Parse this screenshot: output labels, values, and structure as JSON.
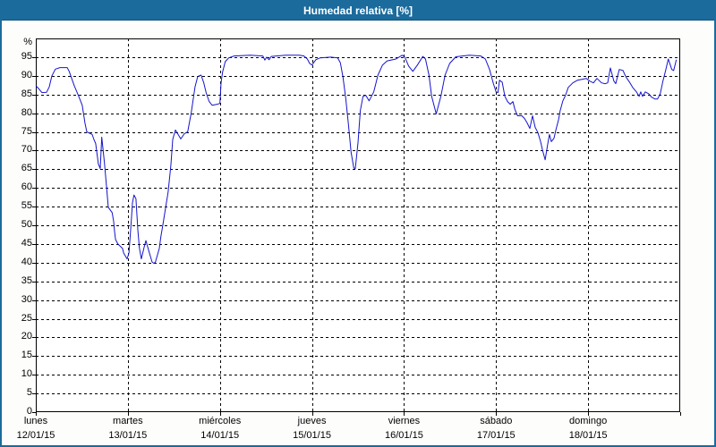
{
  "window": {
    "title": "Humedad relativa [%]"
  },
  "colors": {
    "titlebar": "#1B6B9D",
    "window_border": "#1B6B9D",
    "background": "#FDFEFC",
    "plot_background": "#FFFFFF",
    "grid": "#000000",
    "axis": "#000000",
    "line": "#1414CC",
    "text": "#000000",
    "title_text": "#FFFFFF"
  },
  "chart_data": {
    "type": "line",
    "title": "Humedad relativa [%]",
    "xlabel": "",
    "ylabel": "%",
    "ylim": [
      0,
      100
    ],
    "x_hours_range": [
      0,
      168
    ],
    "grid": "dashed",
    "legend": "none",
    "y_ticks": [
      0,
      5,
      10,
      15,
      20,
      25,
      30,
      35,
      40,
      45,
      50,
      55,
      60,
      65,
      70,
      75,
      80,
      85,
      90,
      95
    ],
    "days": [
      {
        "name": "lunes",
        "date": "12/01/15"
      },
      {
        "name": "martes",
        "date": "13/01/15"
      },
      {
        "name": "miércoles",
        "date": "14/01/15"
      },
      {
        "name": "jueves",
        "date": "15/01/15"
      },
      {
        "name": "viernes",
        "date": "16/01/15"
      },
      {
        "name": "sábado",
        "date": "17/01/15"
      },
      {
        "name": "domingo",
        "date": "18/01/15"
      }
    ],
    "series": [
      {
        "name": "Humedad relativa",
        "unit": "%",
        "points_hours_value": [
          [
            0,
            87.4
          ],
          [
            0.8,
            86.5
          ],
          [
            1.6,
            85.5
          ],
          [
            2.8,
            85.6
          ],
          [
            3.5,
            87
          ],
          [
            4.2,
            90
          ],
          [
            5.1,
            91.8
          ],
          [
            6.3,
            92.2
          ],
          [
            8.2,
            92.2
          ],
          [
            8.7,
            91.2
          ],
          [
            10,
            87.4
          ],
          [
            11.2,
            84.5
          ],
          [
            12.1,
            82.1
          ],
          [
            12.8,
            77.4
          ],
          [
            13.3,
            75
          ],
          [
            14.7,
            74.3
          ],
          [
            15.1,
            73.1
          ],
          [
            15.6,
            71.9
          ],
          [
            16.3,
            66.4
          ],
          [
            16.8,
            65.2
          ],
          [
            17.2,
            73.6
          ],
          [
            17.9,
            66.7
          ],
          [
            18.4,
            60.7
          ],
          [
            18.9,
            54.8
          ],
          [
            19.9,
            53.4
          ],
          [
            20.3,
            51
          ],
          [
            20.5,
            48.6
          ],
          [
            20.8,
            46.2
          ],
          [
            21.4,
            45
          ],
          [
            22.6,
            43.8
          ],
          [
            22.9,
            42.6
          ],
          [
            23.4,
            41.7
          ],
          [
            23.8,
            41
          ],
          [
            24.3,
            42.6
          ],
          [
            24.9,
            51.2
          ],
          [
            25.2,
            56
          ],
          [
            25.6,
            58.1
          ],
          [
            26.1,
            57.1
          ],
          [
            26.6,
            48.8
          ],
          [
            27,
            44
          ],
          [
            27.5,
            41
          ],
          [
            28.2,
            44
          ],
          [
            28.7,
            45.9
          ],
          [
            29.6,
            42.6
          ],
          [
            30.3,
            40.2
          ],
          [
            30.8,
            39.8
          ],
          [
            31.2,
            40.2
          ],
          [
            32.2,
            43.8
          ],
          [
            32.6,
            46.9
          ],
          [
            33.1,
            50
          ],
          [
            33.8,
            54.5
          ],
          [
            34.5,
            59
          ],
          [
            35.2,
            66
          ],
          [
            35.7,
            73
          ],
          [
            36.4,
            75.5
          ],
          [
            37.1,
            74.3
          ],
          [
            37.8,
            73.1
          ],
          [
            38.7,
            74.5
          ],
          [
            39.6,
            75
          ],
          [
            40.5,
            80
          ],
          [
            41.5,
            87
          ],
          [
            42.2,
            89.8
          ],
          [
            43.1,
            90.2
          ],
          [
            43.8,
            88.1
          ],
          [
            44.4,
            85.5
          ],
          [
            45.2,
            83.1
          ],
          [
            46,
            82.1
          ],
          [
            47.3,
            82.4
          ],
          [
            48,
            82.6
          ],
          [
            48.3,
            88.1
          ],
          [
            48.7,
            91
          ],
          [
            49.4,
            93.8
          ],
          [
            50.3,
            94.8
          ],
          [
            51.7,
            95.3
          ],
          [
            55.9,
            95.5
          ],
          [
            59.2,
            95.3
          ],
          [
            59.7,
            94.2
          ],
          [
            60.2,
            95
          ],
          [
            60.8,
            94.3
          ],
          [
            61.4,
            95.2
          ],
          [
            65.2,
            95.5
          ],
          [
            68.7,
            95.5
          ],
          [
            69.9,
            95.3
          ],
          [
            70.8,
            94.5
          ],
          [
            71.4,
            93.3
          ],
          [
            72,
            92.9
          ],
          [
            73,
            94.3
          ],
          [
            74.1,
            94.8
          ],
          [
            76.9,
            95
          ],
          [
            78.7,
            94.8
          ],
          [
            79.4,
            93.5
          ],
          [
            80.1,
            89.5
          ],
          [
            80.8,
            84
          ],
          [
            81.5,
            77
          ],
          [
            82.2,
            69.5
          ],
          [
            82.9,
            65.3
          ],
          [
            83.3,
            65.2
          ],
          [
            84,
            72.1
          ],
          [
            84.6,
            80.7
          ],
          [
            85.3,
            84.5
          ],
          [
            86,
            84.8
          ],
          [
            86.9,
            83.3
          ],
          [
            88.1,
            85.7
          ],
          [
            89.2,
            90.2
          ],
          [
            90.4,
            92.9
          ],
          [
            91.6,
            94
          ],
          [
            93.9,
            94.5
          ],
          [
            95.5,
            95.5
          ],
          [
            96.2,
            95
          ],
          [
            97.2,
            92.6
          ],
          [
            98.3,
            91.2
          ],
          [
            99.5,
            92.9
          ],
          [
            100.9,
            95.2
          ],
          [
            101.6,
            94.5
          ],
          [
            102.5,
            90.2
          ],
          [
            103.2,
            84.5
          ],
          [
            104.4,
            79.8
          ],
          [
            105.6,
            84.5
          ],
          [
            106.7,
            90.2
          ],
          [
            107.9,
            93.3
          ],
          [
            109.5,
            95.1
          ],
          [
            113,
            95.5
          ],
          [
            116,
            95.3
          ],
          [
            117.2,
            94.5
          ],
          [
            118.3,
            91.7
          ],
          [
            119.3,
            87.9
          ],
          [
            120,
            85.7
          ],
          [
            120.5,
            85.5
          ],
          [
            120.9,
            88.8
          ],
          [
            121.6,
            88.3
          ],
          [
            122.3,
            84.5
          ],
          [
            123,
            83.1
          ],
          [
            123.7,
            82.4
          ],
          [
            124.4,
            83.1
          ],
          [
            124.9,
            81
          ],
          [
            125.6,
            79.3
          ],
          [
            126.7,
            79.3
          ],
          [
            127.4,
            78.6
          ],
          [
            128.1,
            77.4
          ],
          [
            128.8,
            75.9
          ],
          [
            129.5,
            79.3
          ],
          [
            130.2,
            76.2
          ],
          [
            130.9,
            74.8
          ],
          [
            131.6,
            72.4
          ],
          [
            132.1,
            70.2
          ],
          [
            132.8,
            67.5
          ],
          [
            133.5,
            71.9
          ],
          [
            133.9,
            74.3
          ],
          [
            134.4,
            72.4
          ],
          [
            135.1,
            73.3
          ],
          [
            135.6,
            75.5
          ],
          [
            136.3,
            78.3
          ],
          [
            136.7,
            80.7
          ],
          [
            137.4,
            83.3
          ],
          [
            138.1,
            84.8
          ],
          [
            138.8,
            86.9
          ],
          [
            140,
            88.1
          ],
          [
            141.2,
            88.8
          ],
          [
            142.1,
            89
          ],
          [
            143.5,
            89.3
          ],
          [
            144.4,
            88.6
          ],
          [
            145.4,
            88.1
          ],
          [
            146.3,
            89.3
          ],
          [
            147.5,
            88.1
          ],
          [
            148.4,
            87.9
          ],
          [
            149.1,
            88.1
          ],
          [
            149.8,
            92.1
          ],
          [
            150.7,
            88.6
          ],
          [
            151.2,
            87.9
          ],
          [
            152.1,
            91.7
          ],
          [
            153.1,
            91.4
          ],
          [
            153.8,
            89.8
          ],
          [
            154.9,
            88.1
          ],
          [
            155.6,
            86.9
          ],
          [
            156.6,
            85.7
          ],
          [
            157.3,
            84.5
          ],
          [
            157.7,
            85.7
          ],
          [
            158.2,
            84.5
          ],
          [
            158.9,
            85.7
          ],
          [
            159.8,
            85.2
          ],
          [
            160.5,
            84.3
          ],
          [
            161.4,
            83.8
          ],
          [
            162.1,
            83.8
          ],
          [
            162.8,
            85.2
          ],
          [
            163.5,
            88.6
          ],
          [
            164.2,
            91.4
          ],
          [
            164.9,
            94.5
          ],
          [
            165.8,
            91.7
          ],
          [
            166.3,
            91.4
          ],
          [
            167,
            94.3
          ]
        ]
      }
    ]
  }
}
